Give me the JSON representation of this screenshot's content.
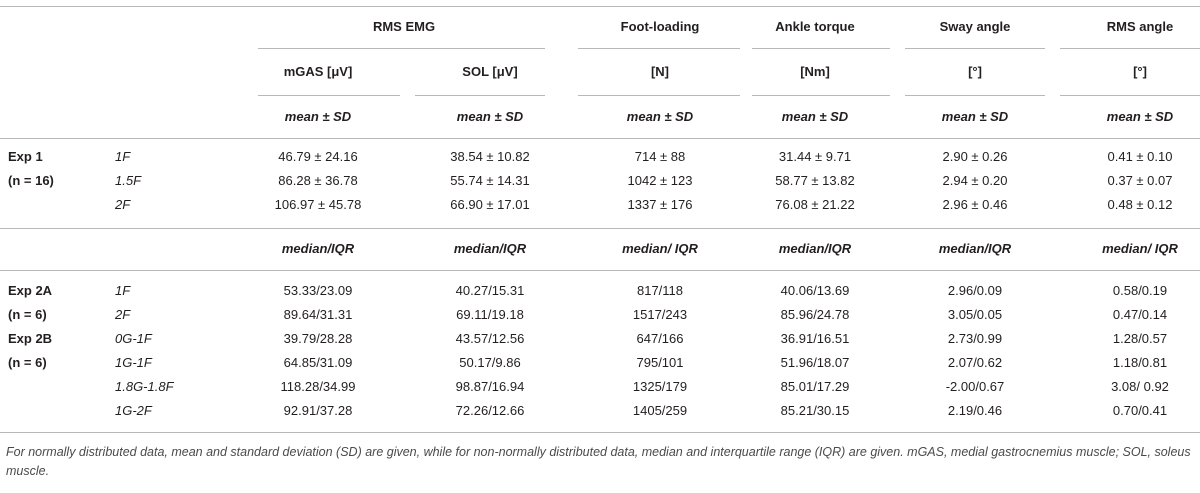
{
  "table": {
    "group_headers": [
      "RMS EMG",
      "Foot-loading",
      "Ankle torque",
      "Sway angle",
      "RMS angle"
    ],
    "units": [
      "mGAS [μV]",
      "SOL [μV]",
      "[N]",
      "[Nm]",
      "[°]",
      "[°]"
    ],
    "mean_header": [
      "mean ± SD",
      "mean ± SD",
      "mean ± SD",
      "mean ± SD",
      "mean ± SD",
      "mean ± SD"
    ],
    "median_header": [
      "median/IQR",
      "median/IQR",
      "median/ IQR",
      "median/IQR",
      "median/IQR",
      "median/ IQR"
    ],
    "sections": [
      {
        "label": "Exp 1",
        "n": "(n = 16)",
        "rows": [
          {
            "condition": "1F",
            "cells": [
              "46.79 ± 24.16",
              "38.54 ± 10.82",
              "714 ± 88",
              "31.44 ± 9.71",
              "2.90 ± 0.26",
              "0.41 ± 0.10"
            ]
          },
          {
            "condition": "1.5F",
            "cells": [
              "86.28 ± 36.78",
              "55.74 ± 14.31",
              "1042 ± 123",
              "58.77 ± 13.82",
              "2.94 ± 0.20",
              "0.37 ± 0.07"
            ]
          },
          {
            "condition": "2F",
            "cells": [
              "106.97 ± 45.78",
              "66.90 ± 17.01",
              "1337 ± 176",
              "76.08 ± 21.22",
              "2.96 ± 0.46",
              "0.48 ± 0.12"
            ]
          }
        ]
      },
      {
        "label": "Exp 2A",
        "n": "(n = 6)",
        "rows": [
          {
            "condition": "1F",
            "cells": [
              "53.33/23.09",
              "40.27/15.31",
              "817/118",
              "40.06/13.69",
              "2.96/0.09",
              "0.58/0.19"
            ]
          },
          {
            "condition": "2F",
            "cells": [
              "89.64/31.31",
              "69.11/19.18",
              "1517/243",
              "85.96/24.78",
              "3.05/0.05",
              "0.47/0.14"
            ]
          }
        ]
      },
      {
        "label": "Exp 2B",
        "n": "(n = 6)",
        "rows": [
          {
            "condition": "0G-1F",
            "cells": [
              "39.79/28.28",
              "43.57/12.56",
              "647/166",
              "36.91/16.51",
              "2.73/0.99",
              "1.28/0.57"
            ]
          },
          {
            "condition": "1G-1F",
            "cells": [
              "64.85/31.09",
              "50.17/9.86",
              "795/101",
              "51.96/18.07",
              "2.07/0.62",
              "1.18/0.81"
            ]
          },
          {
            "condition": "1.8G-1.8F",
            "cells": [
              "118.28/34.99",
              "98.87/16.94",
              "1325/179",
              "85.01/17.29",
              "-2.00/0.67",
              "3.08/ 0.92"
            ]
          },
          {
            "condition": "1G-2F",
            "cells": [
              "92.91/37.28",
              "72.26/12.66",
              "1405/259",
              "85.21/30.15",
              "2.19/0.46",
              "0.70/0.41"
            ]
          }
        ]
      }
    ],
    "footnote": "For normally distributed data, mean and standard deviation (SD) are given, while for non-normally distributed data, median and interquartile range (IQR) are given. mGAS, medial gastrocnemius muscle; SOL, soleus muscle."
  }
}
